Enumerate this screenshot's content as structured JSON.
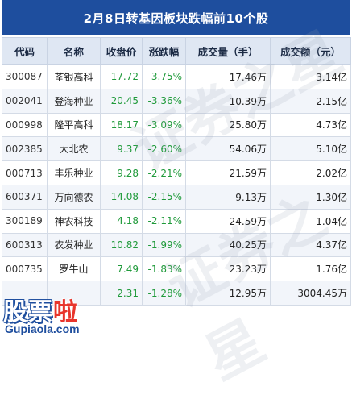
{
  "title": "2月8日转基因板块跌幅前10个股",
  "columns": [
    "代码",
    "名称",
    "收盘价",
    "涨跌幅",
    "成交量（手）",
    "成交额（元）"
  ],
  "rows": [
    {
      "code": "300087",
      "name": "荃银高科",
      "close": "17.72",
      "change": "-3.75%",
      "volume": "17.46万",
      "amount": "3.14亿"
    },
    {
      "code": "002041",
      "name": "登海种业",
      "close": "20.45",
      "change": "-3.36%",
      "volume": "10.39万",
      "amount": "2.15亿"
    },
    {
      "code": "000998",
      "name": "隆平高科",
      "close": "18.17",
      "change": "-3.09%",
      "volume": "25.80万",
      "amount": "4.73亿"
    },
    {
      "code": "002385",
      "name": "大北农",
      "close": "9.37",
      "change": "-2.60%",
      "volume": "54.06万",
      "amount": "5.10亿"
    },
    {
      "code": "000713",
      "name": "丰乐种业",
      "close": "9.28",
      "change": "-2.21%",
      "volume": "21.59万",
      "amount": "2.02亿"
    },
    {
      "code": "600371",
      "name": "万向德农",
      "close": "14.08",
      "change": "-2.15%",
      "volume": "9.13万",
      "amount": "1.30亿"
    },
    {
      "code": "300189",
      "name": "神农科技",
      "close": "4.18",
      "change": "-2.11%",
      "volume": "24.59万",
      "amount": "1.04亿"
    },
    {
      "code": "600313",
      "name": "农发种业",
      "close": "10.82",
      "change": "-1.99%",
      "volume": "40.25万",
      "amount": "4.37亿"
    },
    {
      "code": "000735",
      "name": "罗牛山",
      "close": "7.49",
      "change": "-1.83%",
      "volume": "23.23万",
      "amount": "1.76亿"
    },
    {
      "code": "",
      "name": "",
      "close": "2.31",
      "change": "-1.28%",
      "volume": "12.95万",
      "amount": "3004.45万"
    }
  ],
  "logo": {
    "cn_1": "股票",
    "cn_2": "啦",
    "en": "Gupiaola.com"
  },
  "watermark": "证券之星",
  "colors": {
    "header_blue": "#1e4e9e",
    "down_green": "#1f9a3a",
    "header_row": "#dfe7f3"
  }
}
